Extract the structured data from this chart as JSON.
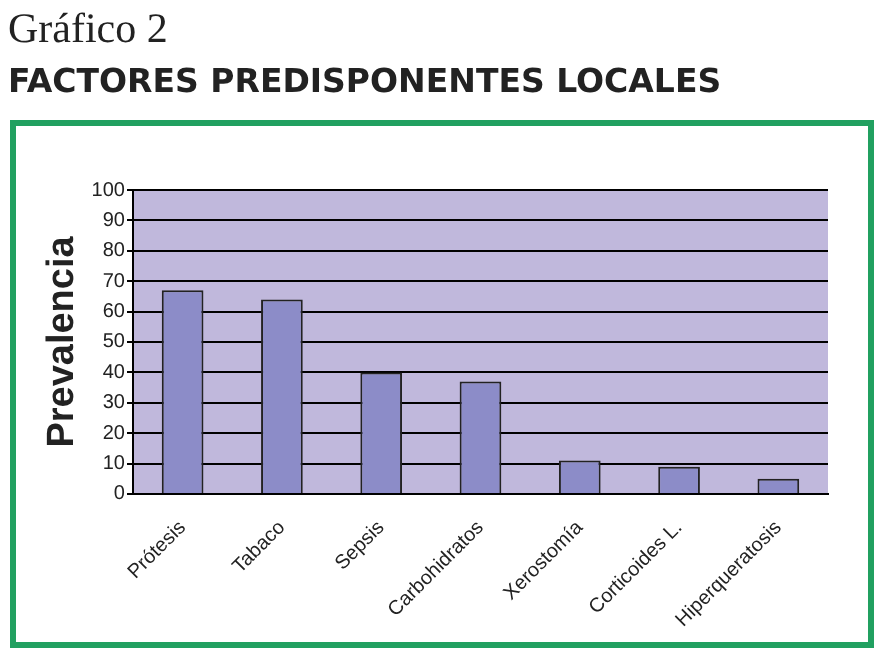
{
  "chart_data": {
    "type": "bar",
    "title": "FACTORES PREDISPONENTES LOCALES",
    "annotations": [
      "Gráfico 2"
    ],
    "ylabel": "Prevalencia",
    "categories": [
      "Prótesis",
      "Tabaco",
      "Sepsis",
      "Carbohidratos",
      "Xerostomía",
      "Corticoides L.",
      "Hiperqueratosis"
    ],
    "values": [
      67,
      64,
      40,
      37,
      11,
      9,
      5
    ],
    "color": "#8c8cc8",
    "ylim": [
      0,
      100
    ],
    "yticks": [
      0,
      10,
      20,
      30,
      40,
      50,
      60,
      70,
      80,
      90,
      100
    ],
    "grid": "y"
  }
}
